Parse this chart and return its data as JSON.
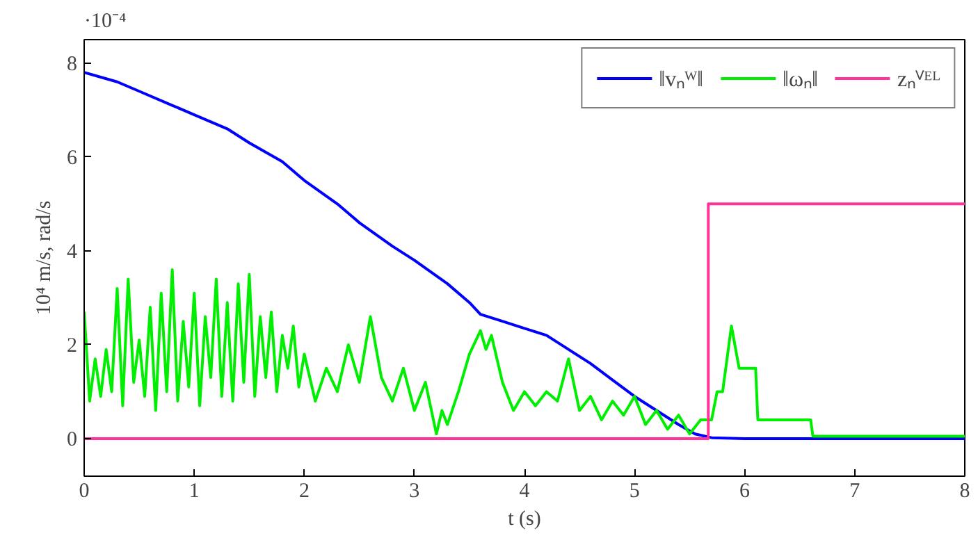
{
  "chart_data": {
    "type": "line",
    "xlabel": "t (s)",
    "ylabel": "10⁴ m/s, rad/s",
    "annotations": [
      "·10⁻⁴"
    ],
    "xlim": [
      0,
      8
    ],
    "ylim": [
      -0.8,
      8.5
    ],
    "xticks": [
      0,
      1,
      2,
      3,
      4,
      5,
      6,
      7,
      8
    ],
    "yticks": [
      0,
      2,
      4,
      6,
      8
    ],
    "grid": false,
    "legend": "top right",
    "line_style": "solid",
    "marker": "none",
    "series": [
      {
        "name": "‖vₙᵂ‖",
        "color": "#0000ff",
        "x": [
          0,
          0.3,
          0.5,
          0.8,
          1,
          1.3,
          1.5,
          1.8,
          2,
          2.3,
          2.5,
          2.8,
          3,
          3.3,
          3.5,
          3.6,
          3.8,
          4,
          4.2,
          4.4,
          4.6,
          4.8,
          5,
          5.2,
          5.4,
          5.55,
          5.7,
          6,
          7,
          8
        ],
        "values": [
          7.8,
          7.6,
          7.4,
          7.1,
          6.9,
          6.6,
          6.3,
          5.9,
          5.5,
          5.0,
          4.6,
          4.1,
          3.8,
          3.3,
          2.9,
          2.65,
          2.5,
          2.35,
          2.2,
          1.9,
          1.6,
          1.25,
          0.9,
          0.6,
          0.3,
          0.1,
          0.02,
          0,
          0,
          0
        ]
      },
      {
        "name": "‖ωₙ‖",
        "color": "#00ee00",
        "x": [
          0,
          0.05,
          0.1,
          0.15,
          0.2,
          0.25,
          0.3,
          0.35,
          0.4,
          0.45,
          0.5,
          0.55,
          0.6,
          0.65,
          0.7,
          0.75,
          0.8,
          0.85,
          0.9,
          0.95,
          1.0,
          1.05,
          1.1,
          1.15,
          1.2,
          1.25,
          1.3,
          1.35,
          1.4,
          1.45,
          1.5,
          1.55,
          1.6,
          1.65,
          1.7,
          1.75,
          1.8,
          1.85,
          1.9,
          1.95,
          2.0,
          2.1,
          2.2,
          2.3,
          2.4,
          2.5,
          2.6,
          2.7,
          2.8,
          2.9,
          3.0,
          3.1,
          3.2,
          3.25,
          3.3,
          3.4,
          3.5,
          3.6,
          3.65,
          3.7,
          3.8,
          3.9,
          4.0,
          4.1,
          4.2,
          4.3,
          4.4,
          4.5,
          4.6,
          4.7,
          4.8,
          4.9,
          5.0,
          5.1,
          5.2,
          5.3,
          5.4,
          5.5,
          5.6,
          5.7,
          5.75,
          5.8,
          5.88,
          5.95,
          6.1,
          6.12,
          6.6,
          6.62,
          8
        ],
        "values": [
          2.7,
          0.8,
          1.7,
          0.9,
          1.9,
          1.0,
          3.2,
          0.7,
          3.4,
          1.2,
          2.1,
          0.9,
          2.8,
          0.6,
          3.1,
          1.0,
          3.6,
          0.8,
          2.5,
          1.1,
          3.1,
          0.7,
          2.6,
          1.3,
          3.4,
          0.9,
          2.9,
          0.8,
          3.3,
          1.2,
          3.5,
          0.9,
          2.6,
          1.3,
          2.7,
          1.0,
          2.2,
          1.5,
          2.4,
          1.1,
          1.8,
          0.8,
          1.5,
          1.0,
          2.0,
          1.2,
          2.6,
          1.3,
          0.8,
          1.5,
          0.6,
          1.2,
          0.1,
          0.6,
          0.3,
          1.0,
          1.8,
          2.3,
          1.9,
          2.2,
          1.2,
          0.6,
          1.0,
          0.7,
          1.0,
          0.8,
          1.7,
          0.6,
          0.9,
          0.4,
          0.8,
          0.5,
          0.9,
          0.3,
          0.6,
          0.2,
          0.5,
          0.1,
          0.4,
          0.4,
          1.0,
          1.0,
          2.4,
          1.5,
          1.5,
          0.4,
          0.4,
          0.05,
          0.05
        ]
      },
      {
        "name": "zₙⱽᴱᴸ",
        "color": "#ff3399",
        "type": "step",
        "x": [
          0,
          5.67,
          8
        ],
        "values": [
          0,
          5,
          5
        ]
      }
    ]
  }
}
